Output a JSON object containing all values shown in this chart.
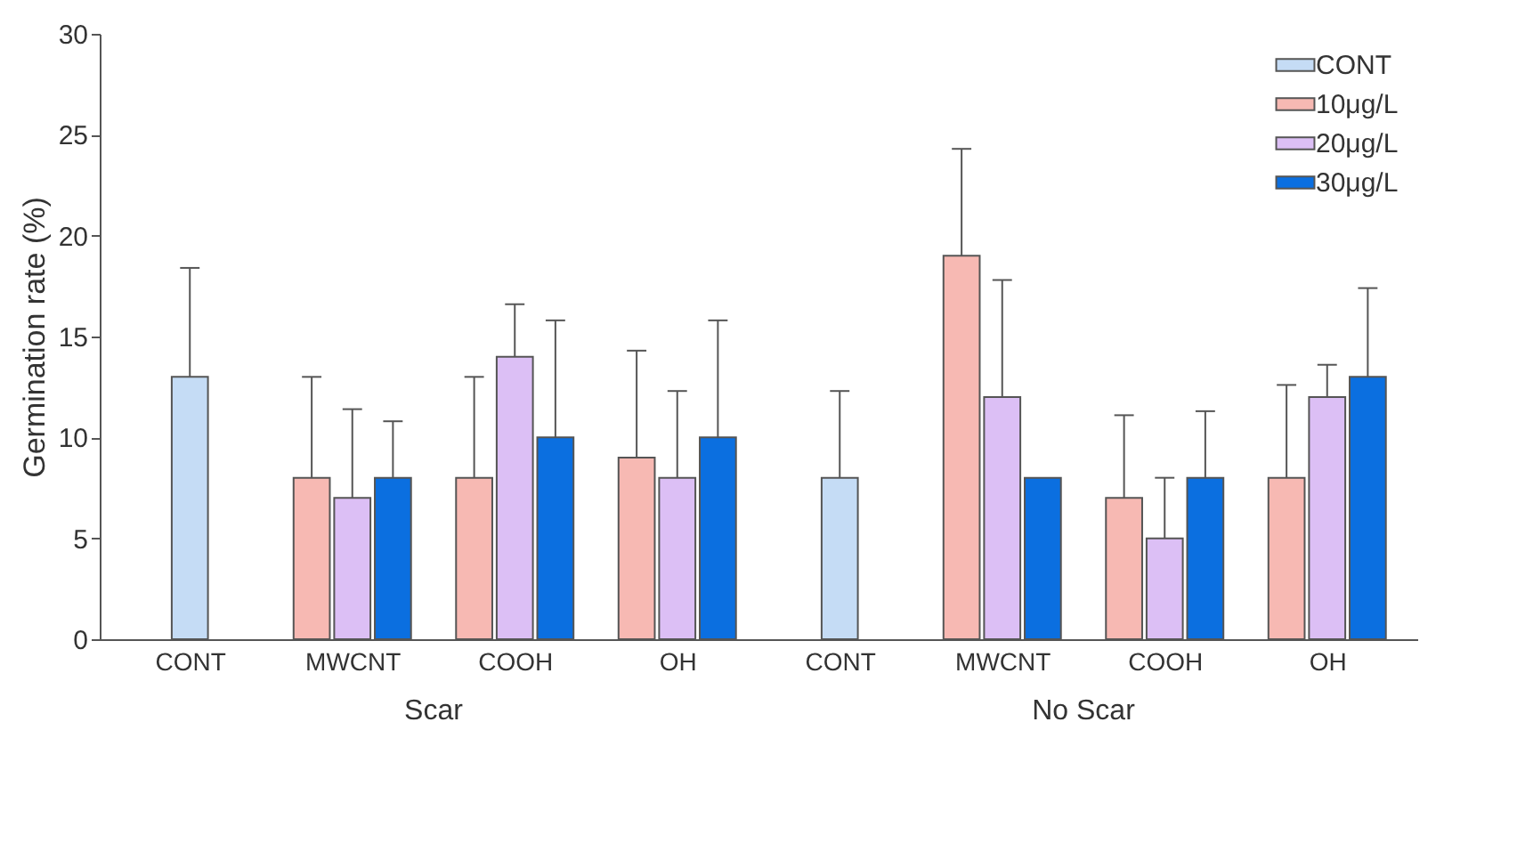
{
  "chart_data": {
    "type": "bar",
    "ylabel": "Germination rate (%)",
    "categories": [
      "CONT",
      "MWCNT",
      "COOH",
      "OH",
      "CONT",
      "MWCNT",
      "COOH",
      "OH"
    ],
    "series": [
      {
        "name": "CONT",
        "color": "#c5dcf5",
        "values": [
          13,
          null,
          null,
          null,
          8,
          null,
          null,
          null
        ],
        "errors": [
          [
            13,
            18.4
          ],
          null,
          null,
          null,
          [
            8,
            12.3
          ],
          null,
          null,
          null
        ]
      },
      {
        "name": "10μg/L",
        "color": "#f7b9b3",
        "values": [
          null,
          8,
          8,
          9,
          null,
          19,
          7,
          8
        ],
        "errors": [
          null,
          [
            8,
            13
          ],
          [
            8,
            13
          ],
          [
            9,
            14.3
          ],
          null,
          [
            19,
            24.3
          ],
          [
            7,
            11.1
          ],
          [
            8,
            12.6
          ]
        ]
      },
      {
        "name": "20μg/L",
        "color": "#dcbff5",
        "values": [
          null,
          7,
          14,
          8,
          null,
          12,
          5,
          12
        ],
        "errors": [
          null,
          [
            7,
            11.4
          ],
          [
            14,
            16.6
          ],
          [
            8,
            12.3
          ],
          null,
          [
            12,
            17.8
          ],
          [
            5,
            8
          ],
          [
            12,
            13.6
          ]
        ]
      },
      {
        "name": "30μg/L",
        "color": "#0b6fe0",
        "values": [
          null,
          8,
          10,
          10,
          null,
          8,
          8,
          13
        ],
        "errors": [
          null,
          [
            8,
            10.8
          ],
          [
            10,
            15.8
          ],
          [
            10,
            15.8
          ],
          null,
          null,
          [
            8,
            11.3
          ],
          [
            13,
            17.4
          ]
        ]
      }
    ],
    "annotations": [
      "Scar",
      "No Scar"
    ],
    "ylim": [
      0,
      30
    ],
    "yticks": [
      0,
      5,
      10,
      15,
      20,
      25,
      30
    ],
    "grid": false,
    "legend": "top right"
  }
}
